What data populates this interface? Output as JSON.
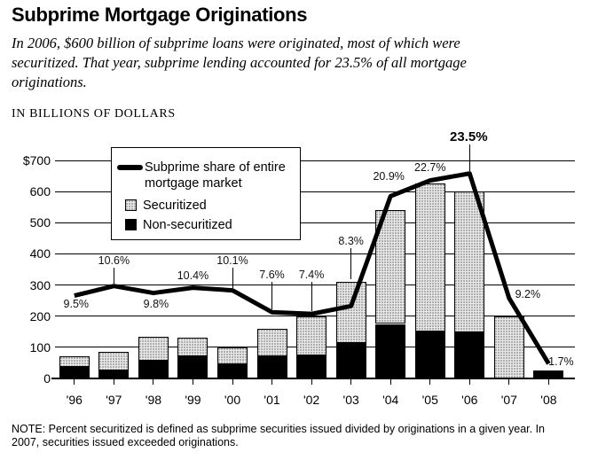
{
  "header": {
    "title": "Subprime Mortgage Originations",
    "subtitle": "In 2006, $600 billion of subprime loans were originated, most of which were securitized. That year, subprime lending accounted for 23.5% of all mortgage originations.",
    "units_label": "IN BILLIONS OF DOLLARS"
  },
  "footer": {
    "note": "NOTE: Percent securitized is defined as subprime securities issued divided by originations in a given year. In 2007, securities issued exceeded originations."
  },
  "chart_data": {
    "type": "bar",
    "subtype": "stacked-bar-with-line-overlay",
    "title": "Subprime Mortgage Originations",
    "ylabel": "IN BILLIONS OF DOLLARS",
    "ylim": [
      0,
      700
    ],
    "grid": true,
    "y_ticks": [
      {
        "value": 700,
        "label": "$700"
      },
      {
        "value": 600,
        "label": "600"
      },
      {
        "value": 500,
        "label": "500"
      },
      {
        "value": 400,
        "label": "400"
      },
      {
        "value": 300,
        "label": "300"
      },
      {
        "value": 200,
        "label": "200"
      },
      {
        "value": 100,
        "label": "100"
      },
      {
        "value": 0,
        "label": "0"
      }
    ],
    "categories": [
      "'96",
      "'97",
      "'98",
      "'99",
      "'00",
      "'01",
      "'02",
      "'03",
      "'04",
      "'05",
      "'06",
      "'07",
      "'08"
    ],
    "series": [
      {
        "name": "Securitized",
        "values": [
          32,
          60,
          77,
          58,
          55,
          90,
          125,
          195,
          365,
          473,
          453,
          200,
          0
        ]
      },
      {
        "name": "Non-securitized",
        "values": [
          38,
          25,
          58,
          72,
          45,
          70,
          75,
          115,
          175,
          152,
          147,
          0,
          25
        ]
      }
    ],
    "totals": [
      70,
      85,
      135,
      130,
      100,
      160,
      200,
      310,
      540,
      625,
      600,
      200,
      25
    ],
    "line_series": {
      "name": "Subprime share of entire mortgage market",
      "unit": "%",
      "values": [
        9.5,
        10.6,
        9.8,
        10.4,
        10.1,
        7.6,
        7.4,
        8.3,
        20.9,
        22.7,
        23.5,
        9.2,
        1.7
      ],
      "labels": [
        "9.5%",
        "10.6%",
        "9.8%",
        "10.4%",
        "10.1%",
        "7.6%",
        "7.4%",
        "8.3%",
        "20.9%",
        "22.7%",
        "23.5%",
        "9.2%",
        "1.7%"
      ],
      "plotted_on_dollar_axis_at": 28
    },
    "legend": {
      "position": "top-left-inside",
      "line": "Subprime share of entire mortgage market",
      "securitized": "Securitized",
      "non_securitized": "Non-securitized"
    },
    "colors": {
      "non_securitized": "#000000",
      "securitized_fill": "#e9e9e9",
      "securitized_dot": "#9a9a9a",
      "line": "#000000",
      "grid": "#000000",
      "label_text": "#111111"
    },
    "label_layout": [
      {
        "y": 343,
        "dx": 2,
        "tick": false,
        "bold": false
      },
      {
        "y": 294,
        "dx": 0,
        "tick": true,
        "bold": false
      },
      {
        "y": 343,
        "dx": 3,
        "tick": false,
        "bold": false
      },
      {
        "y": 311,
        "dx": 0,
        "tick": false,
        "bold": false
      },
      {
        "y": 294,
        "dx": 0,
        "tick": true,
        "bold": false
      },
      {
        "y": 310,
        "dx": 0,
        "tick": true,
        "bold": false
      },
      {
        "y": 310,
        "dx": 0,
        "tick": true,
        "bold": false
      },
      {
        "y": 272,
        "dx": 0,
        "tick": true,
        "bold": false
      },
      {
        "y": 199,
        "dx": -2,
        "tick": false,
        "bold": false
      },
      {
        "y": 189,
        "dx": 0,
        "tick": false,
        "bold": false
      },
      {
        "y": 155,
        "dx": -1,
        "tick": true,
        "bold": true
      },
      {
        "y": 332,
        "dx": 21,
        "tick": false,
        "bold": false
      },
      {
        "y": 408,
        "dx": 14,
        "tick": false,
        "bold": false
      }
    ]
  }
}
